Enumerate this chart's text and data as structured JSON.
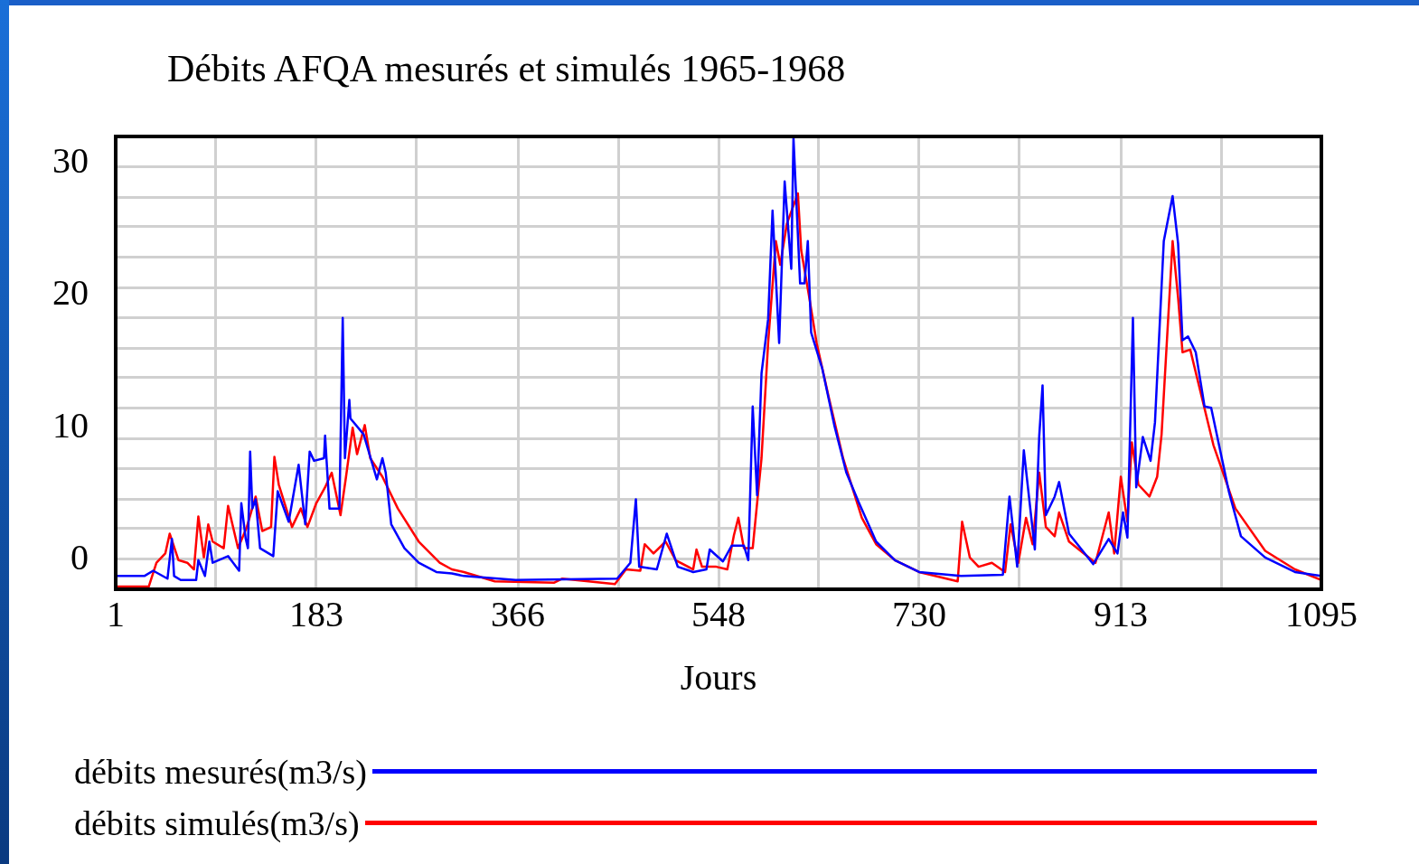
{
  "chart_data": {
    "type": "line",
    "title": "Débits AFQA mesurés et simulés 1965-1968",
    "xlabel": "Jours",
    "xlim": [
      1,
      1095
    ],
    "ylim": [
      -2.2,
      32
    ],
    "xticks": [
      1,
      {
        "value": 92,
        "label": null
      },
      183,
      {
        "value": 274,
        "label": null
      },
      366,
      {
        "value": 457,
        "label": null
      },
      548,
      {
        "value": 639,
        "label": null
      },
      730,
      {
        "value": 821,
        "label": null
      },
      913,
      {
        "value": 1004,
        "label": null
      },
      1095
    ],
    "yticks": [
      0,
      {
        "value": 0.1,
        "label": null
      },
      {
        "value": 2.4,
        "label": null
      },
      {
        "value": 4.6,
        "label": null
      },
      {
        "value": 6.9,
        "label": null
      },
      {
        "value": 9.2,
        "label": null
      },
      10,
      {
        "value": 11.5,
        "label": null
      },
      {
        "value": 13.8,
        "label": null
      },
      {
        "value": 16.0,
        "label": null
      },
      {
        "value": 18.3,
        "label": null
      },
      20,
      {
        "value": 20.6,
        "label": null
      },
      {
        "value": 22.9,
        "label": null
      },
      {
        "value": 25.2,
        "label": null
      },
      {
        "value": 27.4,
        "label": null
      },
      {
        "value": 29.7,
        "label": null
      },
      30
    ],
    "grid": true,
    "legend": "bottom",
    "marker": "none",
    "line_style": "solid",
    "series": [
      {
        "name": "débits mesurés(m3/s)",
        "color": "#0000ff",
        "x": [
          1,
          27,
          35,
          48,
          52,
          54,
          60,
          74,
          76,
          82,
          86,
          89,
          103,
          113,
          115,
          119,
          121,
          123,
          125,
          128,
          132,
          144,
          148,
          158,
          167,
          173,
          177,
          181,
          190,
          191,
          195,
          204,
          207,
          209,
          213,
          214,
          226,
          238,
          243,
          246,
          251,
          263,
          276,
          292,
          306,
          317,
          364,
          456,
          468,
          473,
          476,
          492,
          501,
          511,
          525,
          537,
          540,
          552,
          560,
          571,
          575,
          579,
          583,
          587,
          593,
          597,
          603,
          608,
          614,
          616,
          622,
          626,
          629,
          632,
          642,
          653,
          664,
          675,
          691,
          708,
          730,
          768,
          806,
          812,
          819,
          825,
          835,
          839,
          842,
          845,
          853,
          857,
          866,
          888,
          902,
          910,
          915,
          919,
          924,
          927,
          933,
          940,
          944,
          952,
          960,
          965,
          969,
          974,
          981,
          989,
          995,
          1011,
          1022,
          1044,
          1071,
          1095
        ],
        "values": [
          -1.2,
          -1.2,
          -0.8,
          -1.4,
          1.6,
          -1.2,
          -1.5,
          -1.5,
          0,
          -1.2,
          1.4,
          -0.2,
          0.3,
          -0.8,
          4.3,
          1.6,
          0.9,
          8.2,
          3.9,
          4.6,
          0.9,
          0.3,
          5.2,
          2.9,
          7.2,
          2.7,
          8.2,
          7.5,
          7.7,
          9.4,
          3.9,
          3.9,
          18.3,
          7.7,
          12.1,
          10.7,
          9.5,
          6.1,
          7.7,
          6.6,
          2.7,
          0.9,
          -0.2,
          -0.9,
          -1.0,
          -1.2,
          -1.5,
          -1.4,
          -0.2,
          4.6,
          -0.5,
          -0.7,
          2.0,
          -0.5,
          -0.9,
          -0.7,
          0.8,
          -0.1,
          1.1,
          1.1,
          0,
          11.6,
          4.9,
          14.1,
          18.2,
          26.4,
          16.4,
          28.6,
          22.0,
          31.9,
          20.9,
          20.9,
          24.1,
          17.2,
          14.5,
          10.2,
          6.6,
          4.4,
          1.4,
          0,
          -0.9,
          -1.2,
          -1.1,
          4.8,
          -0.5,
          8.3,
          0.8,
          9.4,
          13.2,
          3.4,
          4.8,
          5.9,
          2.0,
          -0.3,
          1.6,
          0.5,
          3.6,
          1.7,
          18.3,
          5.5,
          9.3,
          7.5,
          10.4,
          24.1,
          27.5,
          23.9,
          16.6,
          16.9,
          15.7,
          11.6,
          11.5,
          5.2,
          1.8,
          0.2,
          -0.9,
          -1.2
        ]
      },
      {
        "name": "débits simulés(m3/s)",
        "color": "#ff0000",
        "x": [
          1,
          31,
          38,
          46,
          50,
          58,
          66,
          72,
          76,
          81,
          85,
          89,
          99,
          103,
          112,
          120,
          128,
          134,
          142,
          145,
          149,
          161,
          169,
          175,
          183,
          191,
          197,
          205,
          210,
          216,
          220,
          227,
          232,
          243,
          257,
          276,
          295,
          306,
          317,
          345,
          399,
          406,
          454,
          464,
          477,
          481,
          489,
          500,
          509,
          525,
          528,
          533,
          546,
          556,
          562,
          566,
          571,
          579,
          587,
          593,
          600,
          604,
          610,
          620,
          623,
          630,
          637,
          648,
          661,
          678,
          691,
          708,
          730,
          765,
          769,
          776,
          784,
          796,
          808,
          813,
          820,
          827,
          833,
          839,
          845,
          853,
          857,
          866,
          890,
          902,
          907,
          913,
          919,
          923,
          929,
          939,
          946,
          950,
          960,
          965,
          969,
          976,
          997,
          1017,
          1044,
          1071,
          1095
        ],
        "values": [
          -2.0,
          -2.0,
          -0.2,
          0.5,
          2.0,
          0,
          -0.2,
          -0.7,
          3.3,
          0.2,
          2.7,
          1.4,
          0.9,
          4.1,
          0.9,
          2.5,
          4.8,
          2.2,
          2.5,
          7.8,
          5.7,
          2.5,
          3.9,
          2.5,
          4.3,
          5.5,
          6.6,
          3.4,
          6.3,
          10.0,
          8.0,
          10.2,
          7.7,
          6.3,
          3.9,
          1.4,
          -0.2,
          -0.7,
          -0.9,
          -1.6,
          -1.7,
          -1.4,
          -1.8,
          -0.7,
          -0.8,
          1.2,
          0.5,
          1.4,
          0,
          -0.7,
          0.8,
          -0.5,
          -0.5,
          -0.7,
          1.9,
          3.2,
          0.9,
          0.9,
          7.7,
          16.4,
          24.1,
          22.3,
          25.4,
          27.7,
          23.4,
          20.0,
          16.4,
          12.3,
          7.7,
          3.2,
          1.2,
          0,
          -0.9,
          -1.6,
          2.9,
          0.2,
          -0.5,
          -0.2,
          -0.9,
          2.7,
          -0.2,
          3.2,
          1.2,
          6.6,
          2.5,
          1.8,
          3.6,
          1.4,
          -0.2,
          3.6,
          0.5,
          6.3,
          2.9,
          8.9,
          5.7,
          4.8,
          6.3,
          9.5,
          24.1,
          19.8,
          15.7,
          15.9,
          8.7,
          3.9,
          0.7,
          -0.7,
          -1.5
        ]
      }
    ]
  }
}
